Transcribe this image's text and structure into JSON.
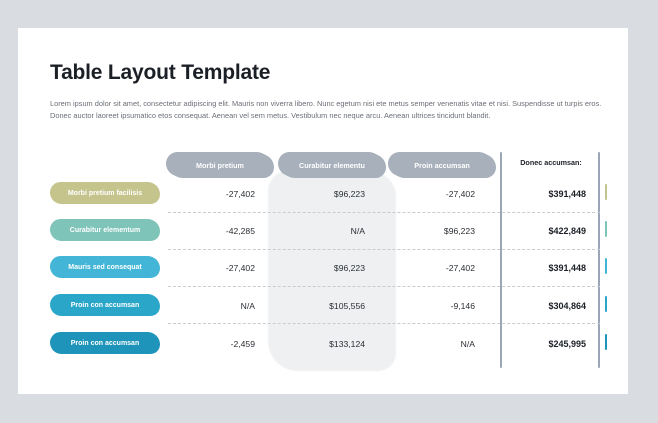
{
  "title": "Table Layout Template",
  "description": "Lorem ipsum dolor sit amet, consectetur adipiscing elit. Mauris non viverra libero. Nunc egetum nisi ete metus semper venenatis vitae et nisi. Suspendisse ut turpis eros. Donec auctor laoreet ipsumatico etos consequat. Aenean vel sem metus. Vestibulum nec neque arcu. Aenean ultrices tincidunt blandit.",
  "columns": [
    "Morbi pretium",
    "Curabitur elementu",
    "Proin accumsan",
    "Donec accumsan:"
  ],
  "rows": [
    {
      "label": "Morbi pretium facilisis",
      "color": "#c5c48d",
      "values": [
        "-27,402",
        "$96,223",
        "-27,402"
      ],
      "total": "$391,448",
      "tick_color": "#c5c48d"
    },
    {
      "label": "Curabitur elementum",
      "color": "#7fc4b8",
      "values": [
        "-42,285",
        "N/A",
        "$96,223"
      ],
      "total": "$422,849",
      "tick_color": "#7fc4b8"
    },
    {
      "label": "Mauris sed consequat",
      "color": "#43b5d6",
      "values": [
        "-27,402",
        "$96,223",
        "-27,402"
      ],
      "total": "$391,448",
      "tick_color": "#43b5d6"
    },
    {
      "label": "Proin con accumsan",
      "color": "#2aa6c9",
      "values": [
        "N/A",
        "$105,556",
        "-9,146"
      ],
      "total": "$304,864",
      "tick_color": "#2aa6c9"
    },
    {
      "label": "Proin con accumsan",
      "color": "#1f94ba",
      "values": [
        "-2,459",
        "$133,124",
        "N/A"
      ],
      "total": "$245,995",
      "tick_color": "#1f94ba"
    }
  ]
}
